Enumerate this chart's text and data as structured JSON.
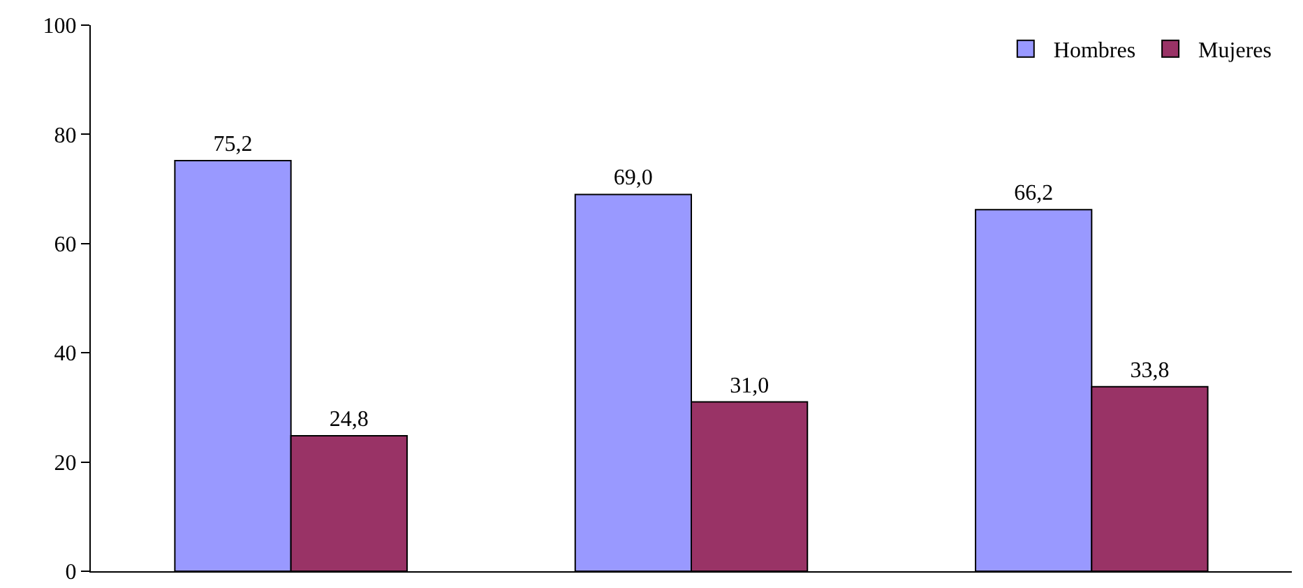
{
  "chart_data": {
    "type": "bar",
    "categories": [
      null,
      null,
      null
    ],
    "series": [
      {
        "name": "Hombres",
        "color": "#9999ff",
        "values": [
          75.2,
          69.0,
          66.2
        ],
        "value_labels": [
          "75,2",
          "69,0",
          "66,2"
        ]
      },
      {
        "name": "Mujeres",
        "color": "#993366",
        "values": [
          24.8,
          31.0,
          33.8
        ],
        "value_labels": [
          "24,8",
          "31,0",
          "33,8"
        ]
      }
    ],
    "ylim": [
      0,
      100
    ],
    "yticks": [
      0,
      20,
      40,
      60,
      80,
      100
    ],
    "grid": false,
    "legend": "top right"
  }
}
